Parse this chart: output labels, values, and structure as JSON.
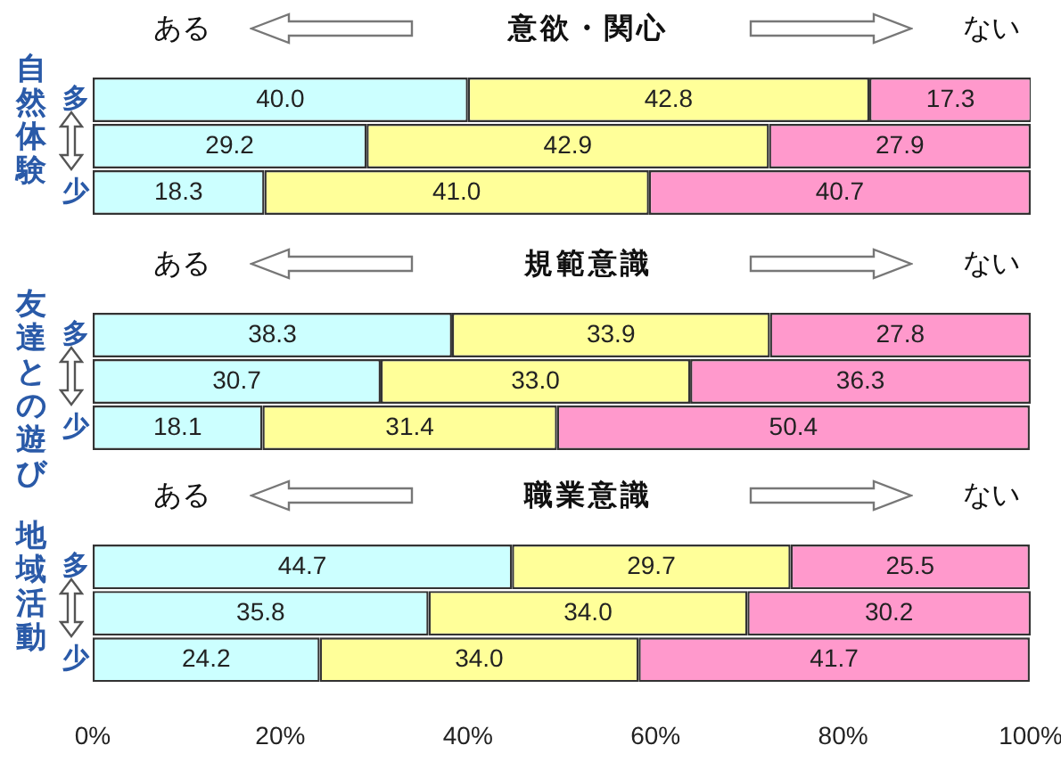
{
  "chart_data": [
    {
      "type": "bar",
      "orientation": "horizontal",
      "stacked": true,
      "title": "意欲・関心",
      "ylabel": "自然体験",
      "annotations": [
        "ある",
        "ない"
      ],
      "categories": [
        "多",
        null,
        "少"
      ],
      "series": [
        {
          "color": "#ccffff",
          "values": [
            40.0,
            29.2,
            18.3
          ],
          "value_labels": [
            "40.0",
            "29.2",
            "18.3"
          ]
        },
        {
          "color": "#ffff99",
          "values": [
            42.8,
            42.9,
            41.0
          ],
          "value_labels": [
            "42.8",
            "42.9",
            "41.0"
          ]
        },
        {
          "color": "#ff99cc",
          "values": [
            17.3,
            27.9,
            40.7
          ],
          "value_labels": [
            "17.3",
            "27.9",
            "40.7"
          ]
        }
      ],
      "xlim": [
        0,
        100
      ],
      "tick_labels": "y"
    },
    {
      "type": "bar",
      "orientation": "horizontal",
      "stacked": true,
      "title": "規範意識",
      "ylabel": "友達との遊び",
      "annotations": [
        "ある",
        "ない"
      ],
      "categories": [
        "多",
        null,
        "少"
      ],
      "series": [
        {
          "color": "#ccffff",
          "values": [
            38.3,
            30.7,
            18.1
          ],
          "value_labels": [
            "38.3",
            "30.7",
            "18.1"
          ]
        },
        {
          "color": "#ffff99",
          "values": [
            33.9,
            33.0,
            31.4
          ],
          "value_labels": [
            "33.9",
            "33.0",
            "31.4"
          ]
        },
        {
          "color": "#ff99cc",
          "values": [
            27.8,
            36.3,
            50.4
          ],
          "value_labels": [
            "27.8",
            "36.3",
            "50.4"
          ]
        }
      ],
      "xlim": [
        0,
        100
      ],
      "tick_labels": "y"
    },
    {
      "type": "bar",
      "orientation": "horizontal",
      "stacked": true,
      "title": "職業意識",
      "ylabel": "地域活動",
      "annotations": [
        "ある",
        "ない"
      ],
      "categories": [
        "多",
        null,
        "少"
      ],
      "series": [
        {
          "color": "#ccffff",
          "values": [
            44.7,
            35.8,
            24.2
          ],
          "value_labels": [
            "44.7",
            "35.8",
            "24.2"
          ]
        },
        {
          "color": "#ffff99",
          "values": [
            29.7,
            34.0,
            34.0
          ],
          "value_labels": [
            "29.7",
            "34.0",
            "34.0"
          ]
        },
        {
          "color": "#ff99cc",
          "values": [
            25.5,
            30.2,
            41.7
          ],
          "value_labels": [
            "25.5",
            "30.2",
            "41.7"
          ]
        }
      ],
      "xlim": [
        0,
        100
      ],
      "xticks": [
        {
          "value": 0,
          "label": "0%"
        },
        {
          "value": 20,
          "label": "20%"
        },
        {
          "value": 40,
          "label": "40%"
        },
        {
          "value": 60,
          "label": "60%"
        },
        {
          "value": 80,
          "label": "80%"
        },
        {
          "value": 100,
          "label": "100%"
        }
      ]
    }
  ]
}
